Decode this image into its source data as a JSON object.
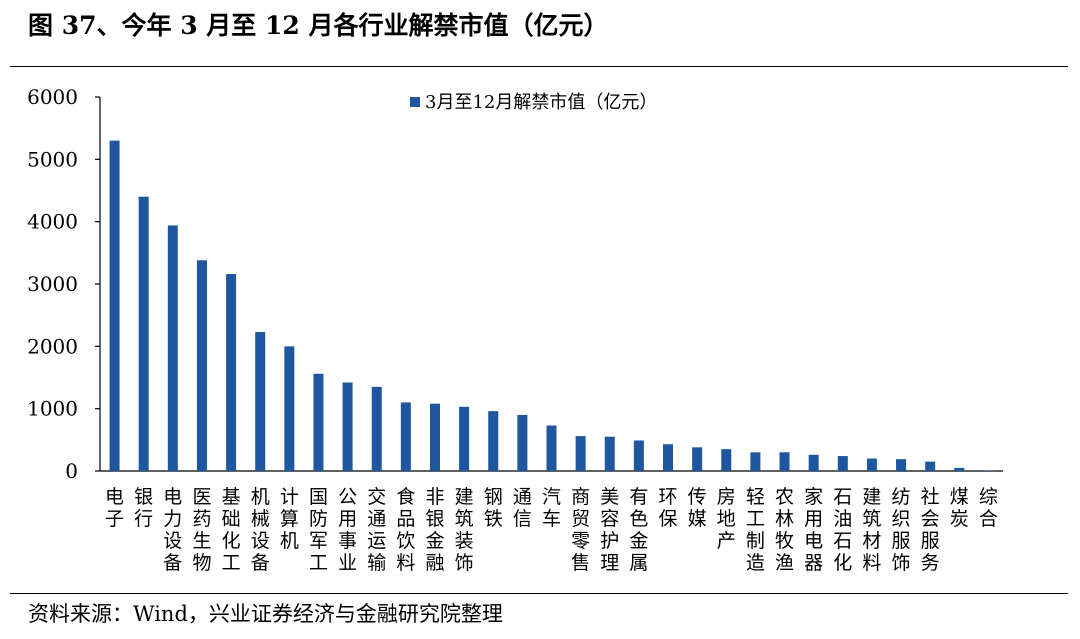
{
  "header": {
    "title": "图 37、今年 3 月至 12 月各行业解禁市值（亿元）"
  },
  "footer": {
    "source": "资料来源：Wind，兴业证券经济与金融研究院整理"
  },
  "colors": {
    "bar": "#1E56A0",
    "axis": "#000000",
    "text": "#000000"
  },
  "chart_data": {
    "type": "bar",
    "title": "",
    "xlabel": "",
    "ylabel": "",
    "ylim": [
      0,
      6000
    ],
    "yticks": [
      0,
      1000,
      2000,
      3000,
      4000,
      5000,
      6000
    ],
    "legend": {
      "position": "top-center",
      "entries": [
        "3月至12月解禁市值（亿元）"
      ]
    },
    "categories": [
      "电子",
      "银行",
      "电力设备",
      "医药生物",
      "基础化工",
      "机械设备",
      "计算机",
      "国防军工",
      "公用事业",
      "交通运输",
      "食品饮料",
      "非银金融",
      "建筑装饰",
      "钢铁",
      "通信",
      "汽车",
      "商贸零售",
      "美容护理",
      "有色金属",
      "环保",
      "传媒",
      "房地产",
      "轻工制造",
      "农林牧渔",
      "家用电器",
      "石油石化",
      "建筑材料",
      "纺织服饰",
      "社会服务",
      "煤炭",
      "综合"
    ],
    "series": [
      {
        "name": "3月至12月解禁市值（亿元）",
        "values": [
          5300,
          4400,
          3940,
          3380,
          3160,
          2230,
          2000,
          1560,
          1420,
          1350,
          1100,
          1080,
          1030,
          960,
          900,
          730,
          560,
          550,
          490,
          430,
          380,
          350,
          300,
          300,
          260,
          240,
          200,
          190,
          150,
          50,
          10
        ]
      }
    ]
  }
}
